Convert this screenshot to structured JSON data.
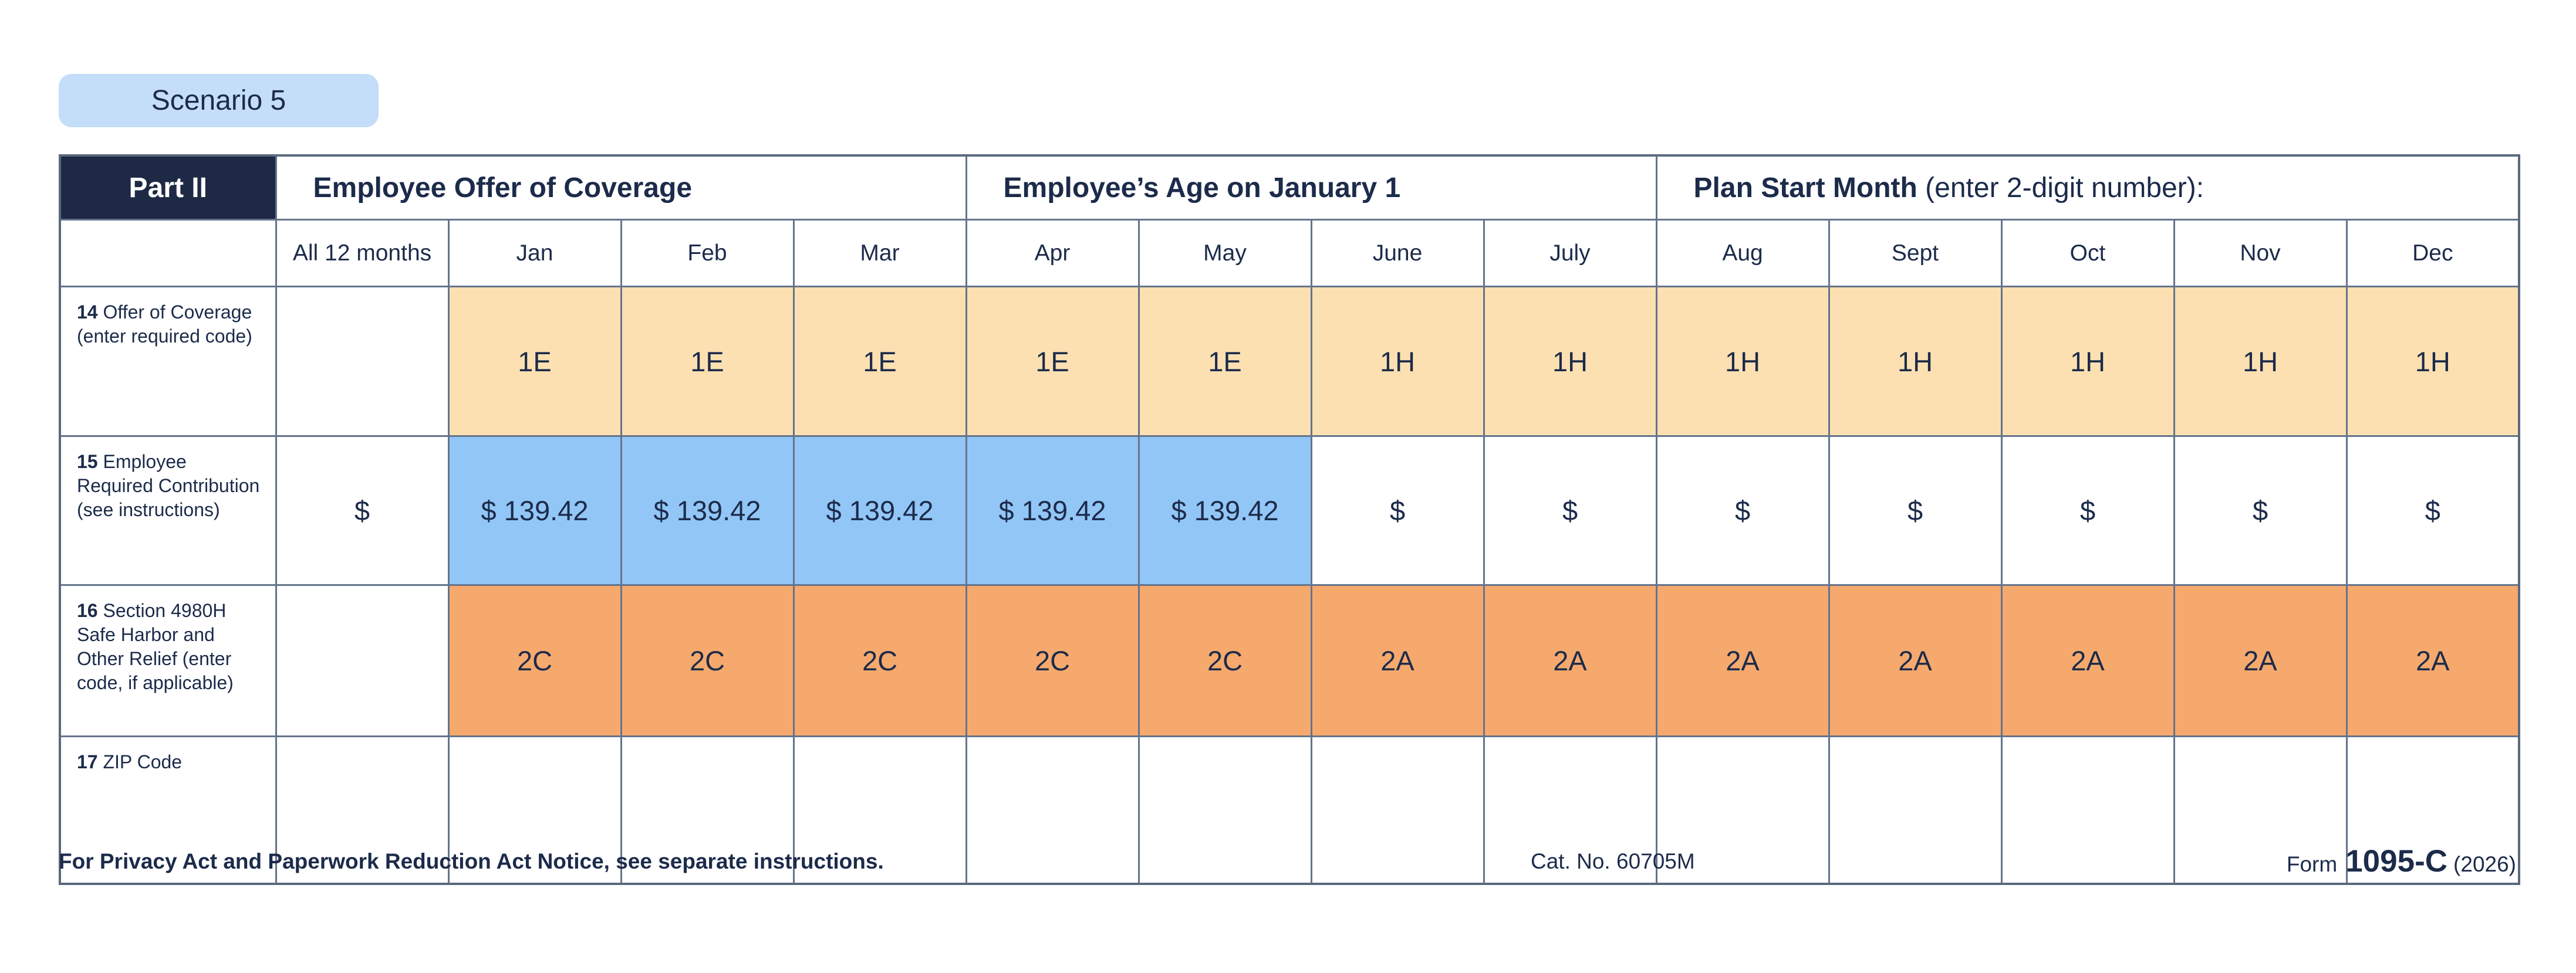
{
  "scenario_badge": "Scenario 5",
  "table": {
    "part_label": "Part II",
    "group_headers": [
      {
        "bold": "Employee Offer of Coverage",
        "normal": ""
      },
      {
        "bold": "Employee’s Age on January 1",
        "normal": ""
      },
      {
        "bold": "Plan Start Month",
        "normal": " (enter 2-digit number):"
      }
    ],
    "month_headers": [
      "All 12 months",
      "Jan",
      "Feb",
      "Mar",
      "Apr",
      "May",
      "June",
      "July",
      "Aug",
      "Sept",
      "Oct",
      "Nov",
      "Dec"
    ],
    "rows": [
      {
        "number": "14",
        "label": "Offer of Coverage (enter required code)",
        "cells": [
          {
            "text": "",
            "bg": "none"
          },
          {
            "text": "1E",
            "bg": "peach"
          },
          {
            "text": "1E",
            "bg": "peach"
          },
          {
            "text": "1E",
            "bg": "peach"
          },
          {
            "text": "1E",
            "bg": "peach"
          },
          {
            "text": "1E",
            "bg": "peach"
          },
          {
            "text": "1H",
            "bg": "peach"
          },
          {
            "text": "1H",
            "bg": "peach"
          },
          {
            "text": "1H",
            "bg": "peach"
          },
          {
            "text": "1H",
            "bg": "peach"
          },
          {
            "text": "1H",
            "bg": "peach"
          },
          {
            "text": "1H",
            "bg": "peach"
          },
          {
            "text": "1H",
            "bg": "peach"
          }
        ]
      },
      {
        "number": "15",
        "label": "Employee Required Contribution (see instructions)",
        "cells": [
          {
            "text": "$",
            "bg": "none"
          },
          {
            "text": "$ 139.42",
            "bg": "blue"
          },
          {
            "text": "$ 139.42",
            "bg": "blue"
          },
          {
            "text": "$ 139.42",
            "bg": "blue"
          },
          {
            "text": "$ 139.42",
            "bg": "blue"
          },
          {
            "text": "$ 139.42",
            "bg": "blue"
          },
          {
            "text": "$",
            "bg": "none"
          },
          {
            "text": "$",
            "bg": "none"
          },
          {
            "text": "$",
            "bg": "none"
          },
          {
            "text": "$",
            "bg": "none"
          },
          {
            "text": "$",
            "bg": "none"
          },
          {
            "text": "$",
            "bg": "none"
          },
          {
            "text": "$",
            "bg": "none"
          }
        ]
      },
      {
        "number": "16",
        "label": "Section 4980H Safe Harbor and Other Relief (enter code, if applicable)",
        "cells": [
          {
            "text": "",
            "bg": "none"
          },
          {
            "text": "2C",
            "bg": "orange"
          },
          {
            "text": "2C",
            "bg": "orange"
          },
          {
            "text": "2C",
            "bg": "orange"
          },
          {
            "text": "2C",
            "bg": "orange"
          },
          {
            "text": "2C",
            "bg": "orange"
          },
          {
            "text": "2A",
            "bg": "orange"
          },
          {
            "text": "2A",
            "bg": "orange"
          },
          {
            "text": "2A",
            "bg": "orange"
          },
          {
            "text": "2A",
            "bg": "orange"
          },
          {
            "text": "2A",
            "bg": "orange"
          },
          {
            "text": "2A",
            "bg": "orange"
          },
          {
            "text": "2A",
            "bg": "orange"
          }
        ]
      },
      {
        "number": "17",
        "label": "ZIP Code",
        "cells": [
          {
            "text": "",
            "bg": "none"
          },
          {
            "text": "",
            "bg": "none"
          },
          {
            "text": "",
            "bg": "none"
          },
          {
            "text": "",
            "bg": "none"
          },
          {
            "text": "",
            "bg": "none"
          },
          {
            "text": "",
            "bg": "none"
          },
          {
            "text": "",
            "bg": "none"
          },
          {
            "text": "",
            "bg": "none"
          },
          {
            "text": "",
            "bg": "none"
          },
          {
            "text": "",
            "bg": "none"
          },
          {
            "text": "",
            "bg": "none"
          },
          {
            "text": "",
            "bg": "none"
          },
          {
            "text": "",
            "bg": "none"
          }
        ]
      }
    ]
  },
  "footer": {
    "privacy_notice": "For Privacy Act and Paperwork Reduction Act Notice, see separate instructions.",
    "cat_no": "Cat. No. 60705M",
    "form_prefix": "Form",
    "form_number": "1095-C",
    "form_year": "(2026)"
  },
  "colors": {
    "peach": "#fde0b2",
    "blue": "#92c6f6",
    "orange": "#f6a96d",
    "navy_text": "#1c2b4a",
    "header_navy": "#1e2a45",
    "badge_blue": "#c4ddf8",
    "border": "#64748b"
  }
}
